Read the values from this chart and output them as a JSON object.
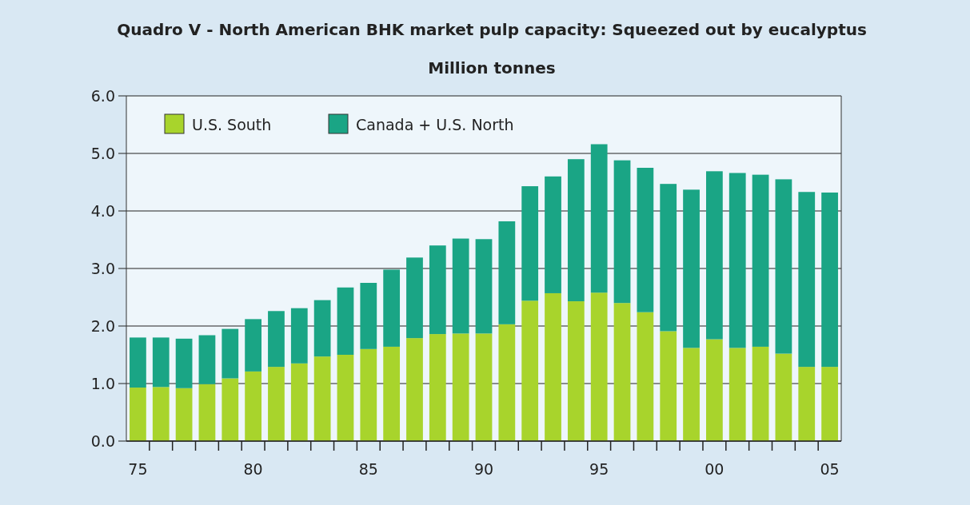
{
  "chart_data": {
    "type": "bar",
    "stacked": true,
    "title": "Quadro V - North American BHK market pulp capacity: Squeezed out by eucalyptus",
    "subtitle": "Million tonnes",
    "x": [
      1975,
      1976,
      1977,
      1978,
      1979,
      1980,
      1981,
      1982,
      1983,
      1984,
      1985,
      1986,
      1987,
      1988,
      1989,
      1990,
      1991,
      1992,
      1993,
      1994,
      1995,
      1996,
      1997,
      1998,
      1999,
      2000,
      2001,
      2002,
      2003,
      2004,
      2005
    ],
    "series": [
      {
        "name": "U.S. South",
        "color": "#a8d42c",
        "values": [
          0.93,
          0.94,
          0.92,
          0.99,
          1.09,
          1.21,
          1.29,
          1.35,
          1.47,
          1.5,
          1.6,
          1.64,
          1.79,
          1.86,
          1.87,
          1.87,
          2.03,
          2.44,
          2.57,
          2.43,
          2.58,
          2.4,
          2.24,
          1.91,
          1.62,
          1.77,
          1.62,
          1.64,
          1.52,
          1.29,
          1.29
        ]
      },
      {
        "name": "Canada + U.S. North",
        "color": "#1aa585",
        "values": [
          0.87,
          0.86,
          0.86,
          0.85,
          0.86,
          0.91,
          0.97,
          0.96,
          0.98,
          1.17,
          1.15,
          1.34,
          1.4,
          1.54,
          1.65,
          1.64,
          1.79,
          1.99,
          2.03,
          2.47,
          2.58,
          2.48,
          2.51,
          2.56,
          2.75,
          2.92,
          3.04,
          2.99,
          3.03,
          3.04,
          3.03
        ]
      }
    ],
    "xlim": [
      1974.5,
      2005.5
    ],
    "xticks": [
      {
        "value": 1975,
        "label": "75"
      },
      {
        "value": 1980,
        "label": "80"
      },
      {
        "value": 1985,
        "label": "85"
      },
      {
        "value": 1990,
        "label": "90"
      },
      {
        "value": 1995,
        "label": "95"
      },
      {
        "value": 2000,
        "label": "00"
      },
      {
        "value": 2005,
        "label": "05"
      },
      {
        "value": 1975.5,
        "label": null
      },
      {
        "value": 1976.5,
        "label": null
      },
      {
        "value": 1977.5,
        "label": null
      },
      {
        "value": 1978.5,
        "label": null
      },
      {
        "value": 1979.5,
        "label": null
      },
      {
        "value": 1980.5,
        "label": null
      },
      {
        "value": 1981.5,
        "label": null
      },
      {
        "value": 1982.5,
        "label": null
      },
      {
        "value": 1983.5,
        "label": null
      },
      {
        "value": 1984.5,
        "label": null
      },
      {
        "value": 1985.5,
        "label": null
      },
      {
        "value": 1986.5,
        "label": null
      },
      {
        "value": 1987.5,
        "label": null
      },
      {
        "value": 1988.5,
        "label": null
      },
      {
        "value": 1989.5,
        "label": null
      },
      {
        "value": 1990.5,
        "label": null
      },
      {
        "value": 1991.5,
        "label": null
      },
      {
        "value": 1992.5,
        "label": null
      },
      {
        "value": 1993.5,
        "label": null
      },
      {
        "value": 1994.5,
        "label": null
      },
      {
        "value": 1995.5,
        "label": null
      },
      {
        "value": 1996.5,
        "label": null
      },
      {
        "value": 1997.5,
        "label": null
      },
      {
        "value": 1998.5,
        "label": null
      },
      {
        "value": 1999.5,
        "label": null
      },
      {
        "value": 2000.5,
        "label": null
      },
      {
        "value": 2001.5,
        "label": null
      },
      {
        "value": 2002.5,
        "label": null
      },
      {
        "value": 2003.5,
        "label": null
      },
      {
        "value": 2004.5,
        "label": null
      }
    ],
    "ylim": [
      0,
      6
    ],
    "yticks": [
      {
        "value": 0,
        "label": "0.0"
      },
      {
        "value": 1,
        "label": "1.0"
      },
      {
        "value": 2,
        "label": "2.0"
      },
      {
        "value": 3,
        "label": "3.0"
      },
      {
        "value": 4,
        "label": "4.0"
      },
      {
        "value": 5,
        "label": "5.0"
      },
      {
        "value": 6,
        "label": "6.0"
      }
    ],
    "grid": "y",
    "legend": "top left"
  }
}
